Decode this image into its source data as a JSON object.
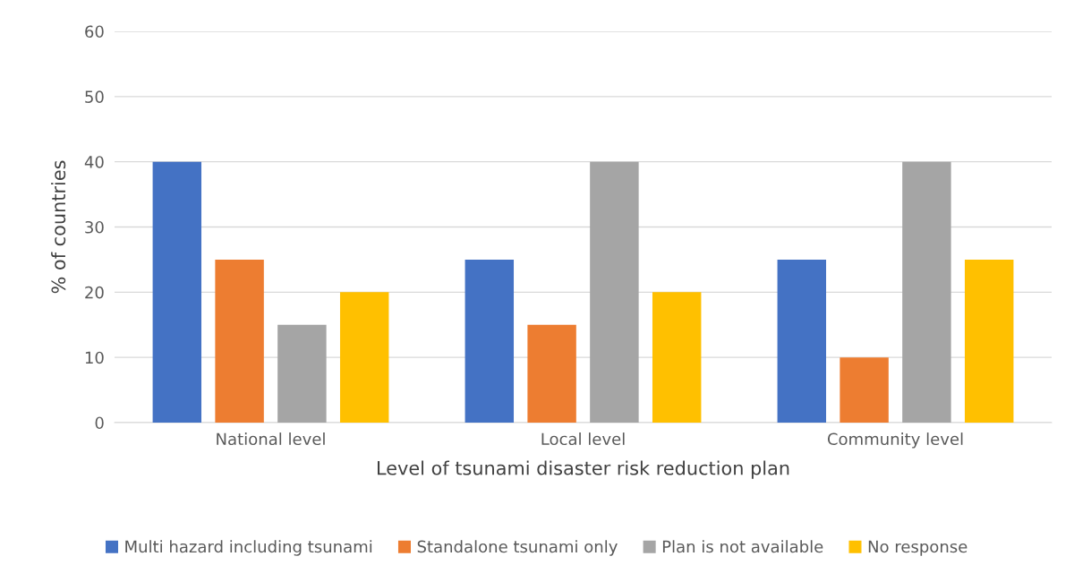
{
  "chart_data": {
    "type": "bar",
    "xlabel": "Level of tsunami disaster risk reduction plan",
    "ylabel": "% of countries",
    "categories": [
      "National level",
      "Local level",
      "Community level"
    ],
    "series": [
      {
        "name": "Multi hazard including tsunami",
        "color": "#4472c4",
        "values": [
          40,
          25,
          25
        ]
      },
      {
        "name": "Standalone tsunami only",
        "color": "#ed7d31",
        "values": [
          25,
          15,
          10
        ]
      },
      {
        "name": "Plan is not available",
        "color": "#a5a5a5",
        "values": [
          15,
          40,
          40
        ]
      },
      {
        "name": "No response",
        "color": "#ffc000",
        "values": [
          20,
          20,
          25
        ]
      }
    ],
    "ylim": [
      0,
      60
    ],
    "yticks": [
      0,
      10,
      20,
      30,
      40,
      50,
      60
    ],
    "grid": "y",
    "legend": "bottom"
  }
}
